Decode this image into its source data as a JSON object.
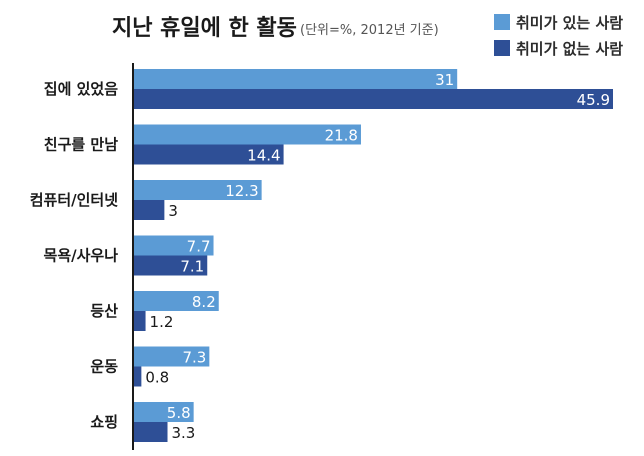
{
  "colors": {
    "series_with_hobby": "#5B9BD5",
    "series_without_hobby": "#2E4F96",
    "axis": "#1a1a1a"
  },
  "chart_data": {
    "type": "bar",
    "orientation": "horizontal",
    "title": "지난 휴일에 한 활동",
    "subtitle": "(단위=%, 2012년 기준)",
    "categories": [
      "집에 있었음",
      "친구를 만남",
      "컴퓨터/인터넷",
      "목욕/사우나",
      "등산",
      "운동",
      "쇼핑"
    ],
    "series": [
      {
        "name": "취미가 있는 사람",
        "values": [
          31,
          21.8,
          12.3,
          7.7,
          8.2,
          7.3,
          5.8
        ],
        "labels": [
          "31",
          "21.8",
          "12.3",
          "7.7",
          "8.2",
          "7.3",
          "5.8"
        ]
      },
      {
        "name": "취미가 없는 사람",
        "values": [
          45.9,
          14.4,
          3,
          7.1,
          1.2,
          0.8,
          3.3
        ],
        "labels": [
          "45.9",
          "14.4",
          "3",
          "7.1",
          "1.2",
          "0.8",
          "3.3"
        ]
      }
    ],
    "xlim": [
      0,
      46
    ],
    "grid": false,
    "legend": "top-right"
  }
}
